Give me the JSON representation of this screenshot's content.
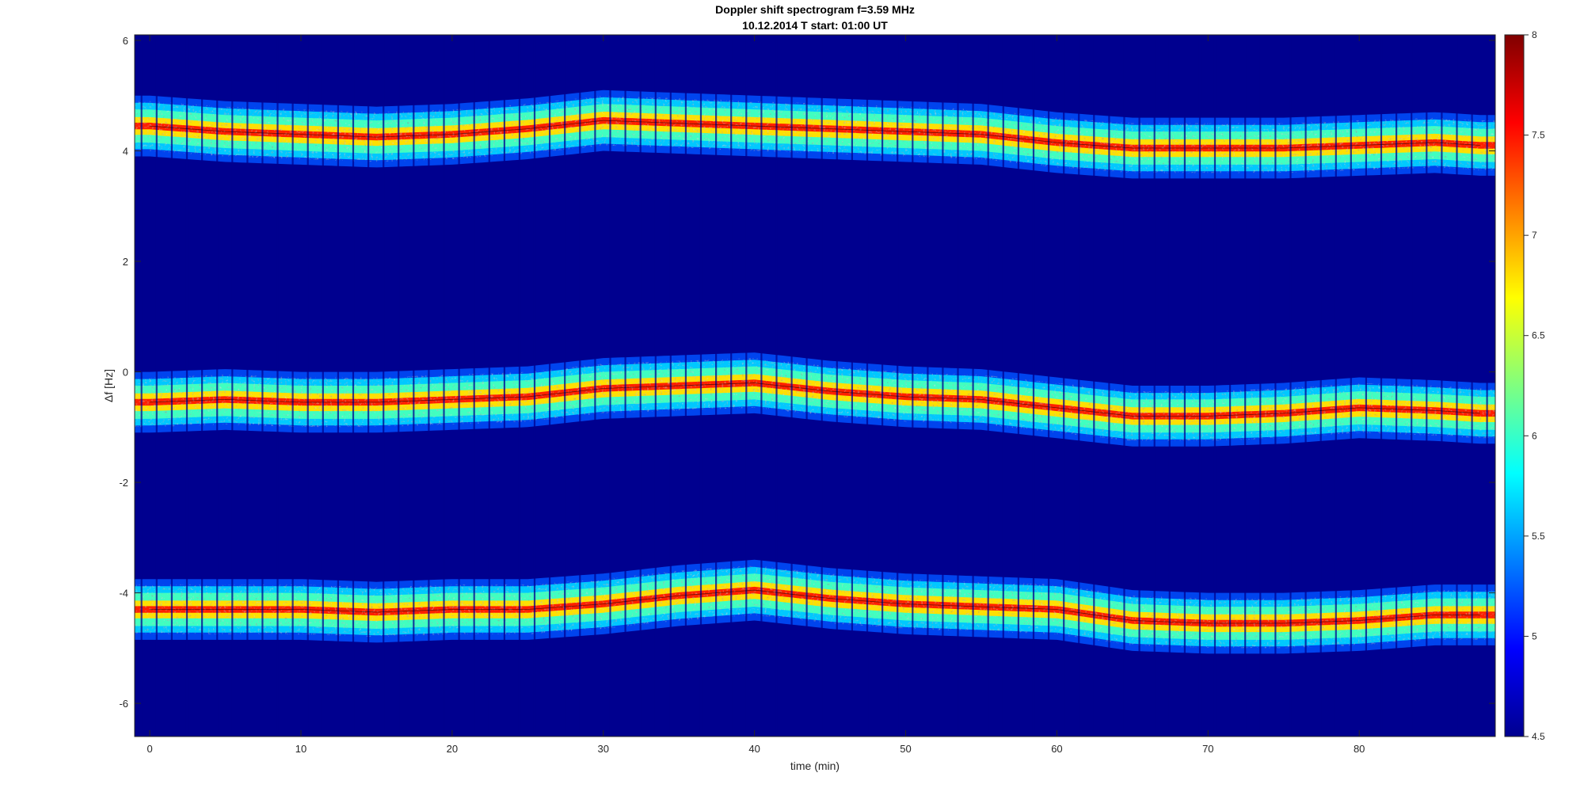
{
  "chart_data": {
    "type": "heatmap",
    "title": "Doppler shift spectrogram f=3.59 MHz",
    "subtitle": "10.12.2014   T start: 01:00 UT",
    "xlabel": "time (min)",
    "ylabel": "Δf [Hz]",
    "xlim": [
      -1,
      89
    ],
    "ylim": [
      -6.6,
      6.1
    ],
    "xticks": [
      0,
      10,
      20,
      30,
      40,
      50,
      60,
      70,
      80
    ],
    "yticks": [
      -6,
      -4,
      -2,
      0,
      2,
      4,
      6
    ],
    "colormap": "jet",
    "colorbar": {
      "range": [
        4.5,
        8
      ],
      "ticks": [
        4.5,
        5,
        5.5,
        6,
        6.5,
        7,
        7.5,
        8
      ]
    },
    "background_color": "#00008f",
    "series": [
      {
        "x": [
          0,
          5,
          10,
          15,
          20,
          25,
          30,
          35,
          40,
          45,
          50,
          55,
          60,
          65,
          70,
          75,
          80,
          85,
          88
        ],
        "values": [
          4.45,
          4.35,
          4.3,
          4.25,
          4.3,
          4.4,
          4.55,
          4.5,
          4.45,
          4.4,
          4.35,
          4.3,
          4.15,
          4.05,
          4.05,
          4.05,
          4.1,
          4.15,
          4.1
        ]
      },
      {
        "x": [
          0,
          5,
          10,
          15,
          20,
          25,
          30,
          35,
          40,
          45,
          50,
          55,
          60,
          65,
          70,
          75,
          80,
          85,
          88
        ],
        "values": [
          -0.55,
          -0.5,
          -0.55,
          -0.55,
          -0.5,
          -0.45,
          -0.3,
          -0.25,
          -0.2,
          -0.35,
          -0.45,
          -0.5,
          -0.65,
          -0.8,
          -0.8,
          -0.75,
          -0.65,
          -0.7,
          -0.75
        ]
      },
      {
        "x": [
          0,
          5,
          10,
          15,
          20,
          25,
          30,
          35,
          40,
          45,
          50,
          55,
          60,
          65,
          70,
          75,
          80,
          85,
          88
        ],
        "values": [
          -4.3,
          -4.3,
          -4.3,
          -4.35,
          -4.3,
          -4.3,
          -4.2,
          -4.05,
          -3.95,
          -4.1,
          -4.2,
          -4.25,
          -4.3,
          -4.5,
          -4.55,
          -4.55,
          -4.5,
          -4.4,
          -4.4
        ]
      }
    ]
  }
}
